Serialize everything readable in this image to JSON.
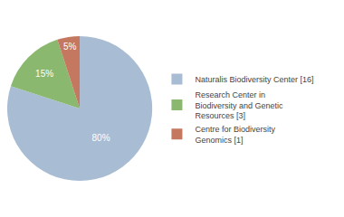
{
  "chart_data": {
    "type": "pie",
    "categories": [
      "Naturalis Biodiversity Center [16]",
      "Research Center in\nBiodiversity and Genetic\nResources [3]",
      "Centre for Biodiversity\nGenomics [1]"
    ],
    "values": [
      80,
      15,
      5
    ],
    "value_labels": [
      "80%",
      "15%",
      "5%"
    ],
    "colors": [
      "#a8bcd4",
      "#8ab86e",
      "#c47860"
    ],
    "data_labels": true,
    "legend": "right"
  }
}
